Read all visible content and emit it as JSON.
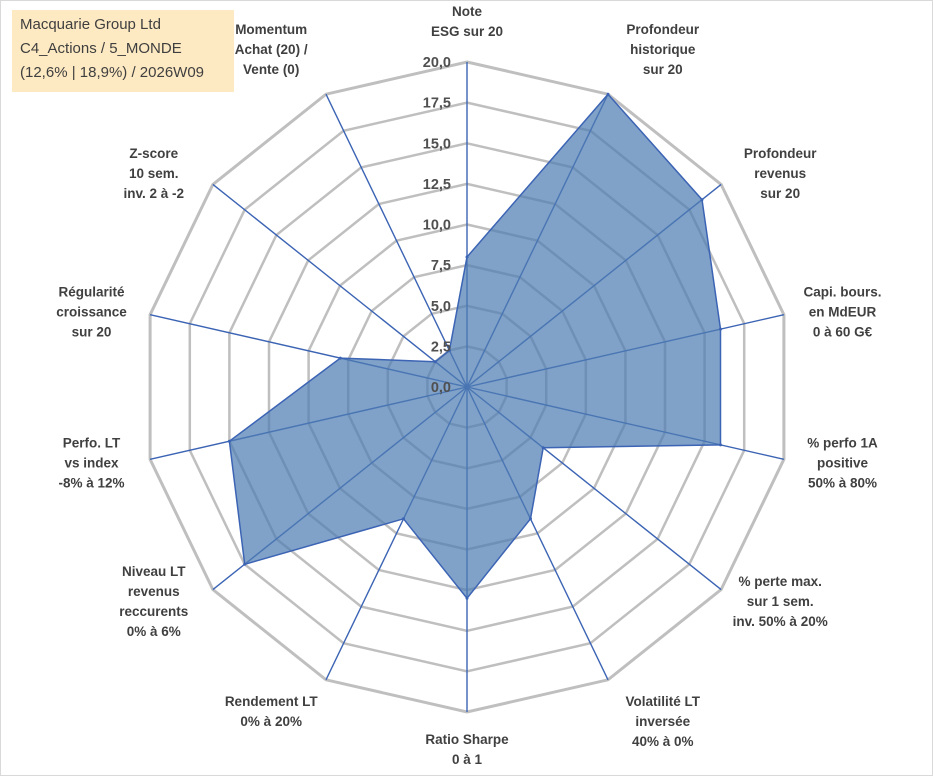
{
  "chart_data": {
    "type": "radar",
    "title_lines": [
      "Macquarie Group Ltd",
      "C4_Actions / 5_MONDE",
      "(12,6% | 18,9%) / 2026W09"
    ],
    "rmin": 0,
    "rmax": 20,
    "ticks": [
      "0,0",
      "2,5",
      "5,0",
      "7,5",
      "10,0",
      "12,5",
      "15,0",
      "17,5",
      "20,0"
    ],
    "categories": [
      [
        "Note",
        "ESG sur 20"
      ],
      [
        "Profondeur",
        "historique",
        "sur 20"
      ],
      [
        "Profondeur",
        "revenus",
        "sur 20"
      ],
      [
        "Capi. bours.",
        "en MdEUR",
        "0 à 60 G€"
      ],
      [
        "% perfo 1A",
        "positive",
        "50% à 80%"
      ],
      [
        "% perte max.",
        "sur 1 sem.",
        "inv. 50% à 20%"
      ],
      [
        "Volatilité LT",
        "inversée",
        "40% à 0%"
      ],
      [
        "Ratio Sharpe",
        "0 à 1"
      ],
      [
        "Rendement LT",
        "0% à 20%"
      ],
      [
        "Niveau LT",
        "revenus",
        "reccurents",
        "0% à 6%"
      ],
      [
        "Perfo. LT",
        "vs index",
        "-8% à 12%"
      ],
      [
        "Régularité",
        "croissance",
        "sur 20"
      ],
      [
        "Z-score",
        "10 sem.",
        "inv. 2 à -2"
      ],
      [
        "Momentum",
        "Achat (20) /",
        "Vente (0)"
      ]
    ],
    "series": [
      {
        "values": [
          8,
          20,
          18.5,
          16,
          16,
          6,
          9,
          13,
          9,
          17.5,
          15,
          8,
          2.5,
          2.5
        ]
      }
    ],
    "fill_color": "#4f7db3",
    "fill_opacity": 0.72,
    "grid_color": "#bfbfbf",
    "axis_color": "#3c64b4",
    "legend": "none"
  }
}
